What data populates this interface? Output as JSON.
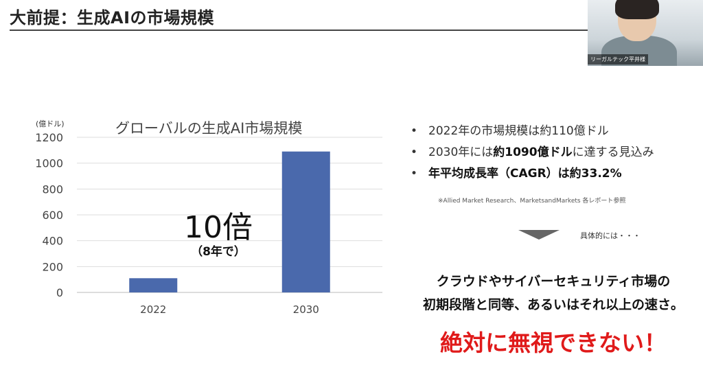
{
  "slide": {
    "title": "大前提：生成AIの市場規模"
  },
  "webcam": {
    "name": "リーガルテック平井様"
  },
  "chart_data": {
    "type": "bar",
    "title": "グローバルの生成AI市場規模",
    "unit_label": "(億ドル)",
    "categories": [
      "2022",
      "2030"
    ],
    "values": [
      110,
      1090
    ],
    "ylim": [
      0,
      1200
    ],
    "yticks": [
      "0",
      "200",
      "400",
      "600",
      "800",
      "1000",
      "1200"
    ],
    "grid": true,
    "bar_color": "#4a69ac",
    "annotation": {
      "main": "10倍",
      "sub": "（8年で）"
    }
  },
  "bullets": [
    {
      "plain_before": "2022年の市場規模は約110億ドル",
      "bold": "",
      "plain_after": ""
    },
    {
      "plain_before": "2030年には",
      "bold": "約1090億ドル",
      "plain_after": "に達する見込み"
    },
    {
      "plain_before": "",
      "bold": "年平均成長率（CAGR）は約33.2%",
      "plain_after": ""
    }
  ],
  "footnote": "※Allied Market Research、MarketsandMarkets 各レポート参照",
  "concrete_label": "具体的には・・・",
  "statements": {
    "line1": "クラウドやサイバーセキュリティ市場の",
    "line2": "初期段階と同等、あるいはそれ以上の速さ。",
    "line3": "絶対に無視できない！",
    "highlight_color": "#e01a1a"
  }
}
